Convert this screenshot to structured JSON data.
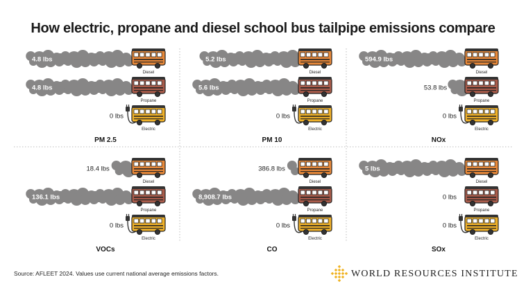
{
  "title": "How electric, propane and diesel school bus tailpipe emissions compare",
  "source": "Source: AFLEET 2024. Values use current national average emissions factors.",
  "logo_text": "WORLD RESOURCES INSTITUTE",
  "colors": {
    "smoke": "#878686",
    "diesel_bus": "#e8893a",
    "propane_bus": "#a95c4b",
    "electric_bus": "#efb12a",
    "logo_gold": "#f0b323"
  },
  "icons": [
    "bus-icon",
    "smoke-cloud-icon",
    "charger-plug-icon",
    "logo-mark-icon"
  ],
  "chart_data": [
    {
      "type": "bar",
      "title": "PM 2.5",
      "unit": "lbs",
      "categories": [
        "Diesel",
        "Propane",
        "Electric"
      ],
      "values": [
        4.8,
        4.8,
        0
      ],
      "labels": [
        "4.8 lbs",
        "4.8 lbs",
        "0 lbs"
      ]
    },
    {
      "type": "bar",
      "title": "PM 10",
      "unit": "lbs",
      "categories": [
        "Diesel",
        "Propane",
        "Electric"
      ],
      "values": [
        5.2,
        5.6,
        0
      ],
      "labels": [
        "5.2 lbs",
        "5.6 lbs",
        "0 lbs"
      ]
    },
    {
      "type": "bar",
      "title": "NOx",
      "unit": "lbs",
      "categories": [
        "Diesel",
        "Propane",
        "Electric"
      ],
      "values": [
        594.9,
        53.8,
        0
      ],
      "labels": [
        "594.9 lbs",
        "53.8 lbs",
        "0 lbs"
      ]
    },
    {
      "type": "bar",
      "title": "VOCs",
      "unit": "lbs",
      "categories": [
        "Diesel",
        "Propane",
        "Electric"
      ],
      "values": [
        18.4,
        136.1,
        0
      ],
      "labels": [
        "18.4 lbs",
        "136.1 lbs",
        "0 lbs"
      ]
    },
    {
      "type": "bar",
      "title": "CO",
      "unit": "lbs",
      "categories": [
        "Diesel",
        "Propane",
        "Electric"
      ],
      "values": [
        386.8,
        8908.7,
        0
      ],
      "labels": [
        "386.8 lbs",
        "8,908.7 lbs",
        "0 lbs"
      ]
    },
    {
      "type": "bar",
      "title": "SOx",
      "unit": "lbs",
      "categories": [
        "Diesel",
        "Propane",
        "Electric"
      ],
      "values": [
        5,
        0,
        0
      ],
      "labels": [
        "5 lbs",
        "0 lbs",
        "0 lbs"
      ]
    }
  ]
}
